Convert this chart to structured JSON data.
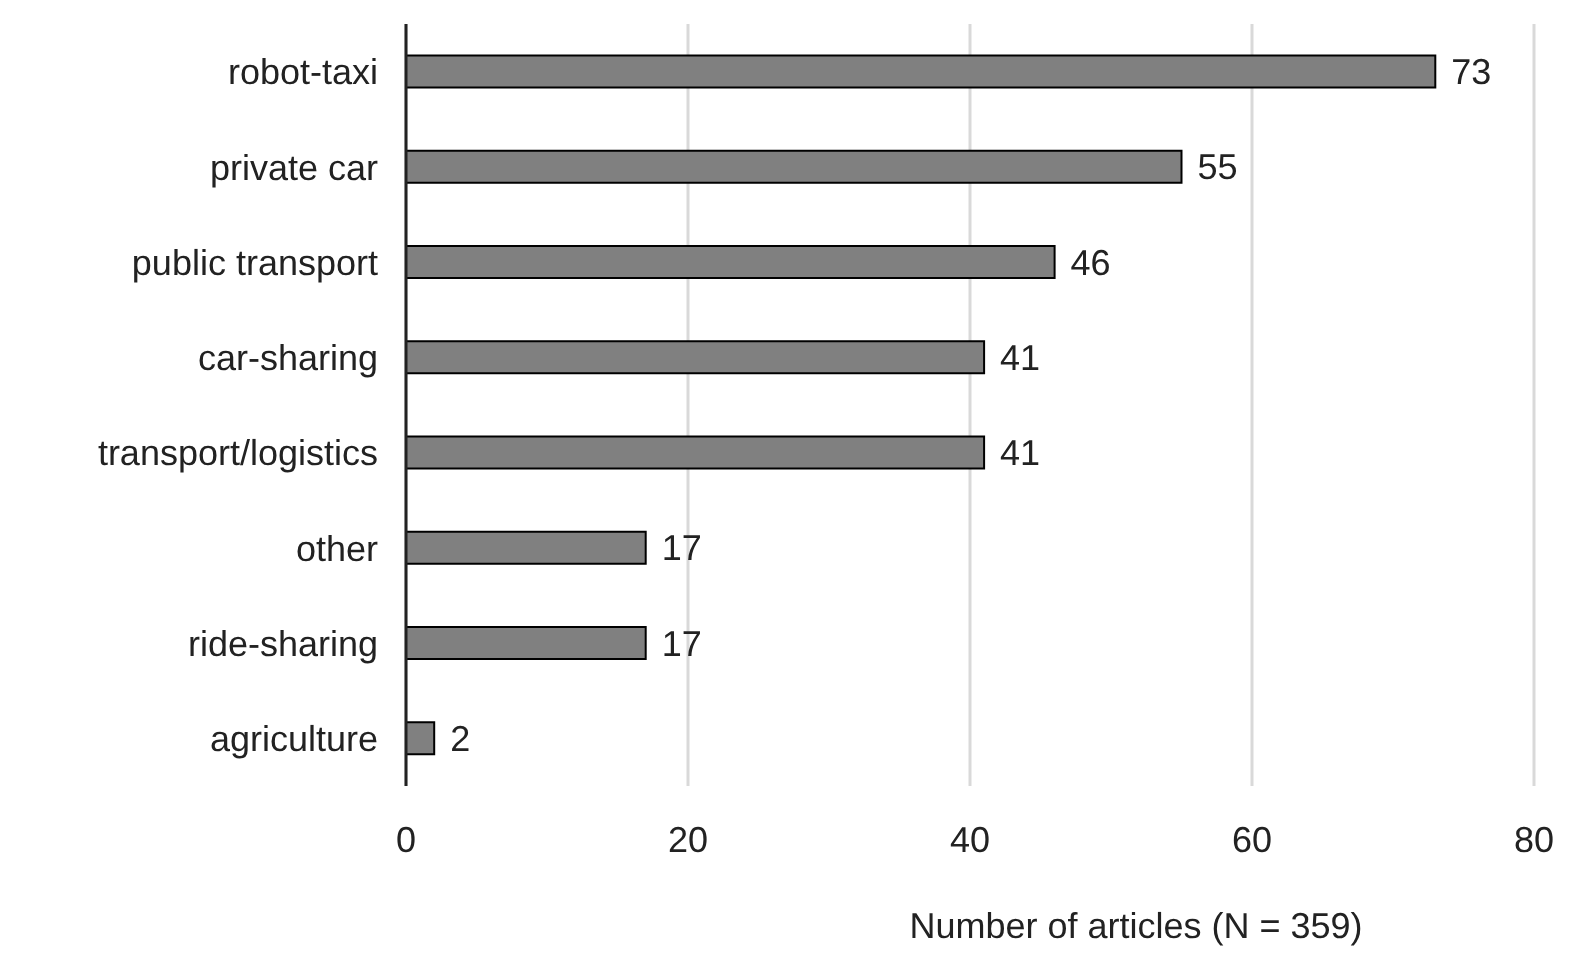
{
  "chart_data": {
    "type": "bar",
    "orientation": "horizontal",
    "xlabel": "Number of articles (N = 359)",
    "categories": [
      "robot-taxi",
      "private car",
      "public transport",
      "car-sharing",
      "transport/logistics",
      "other",
      "ride-sharing",
      "agriculture"
    ],
    "values": [
      73,
      55,
      46,
      41,
      41,
      17,
      17,
      2
    ],
    "color": "#808080",
    "xlim": [
      0,
      80
    ],
    "xticks": [
      0,
      20,
      40,
      60,
      80
    ],
    "grid": "x",
    "data_labels": true
  }
}
